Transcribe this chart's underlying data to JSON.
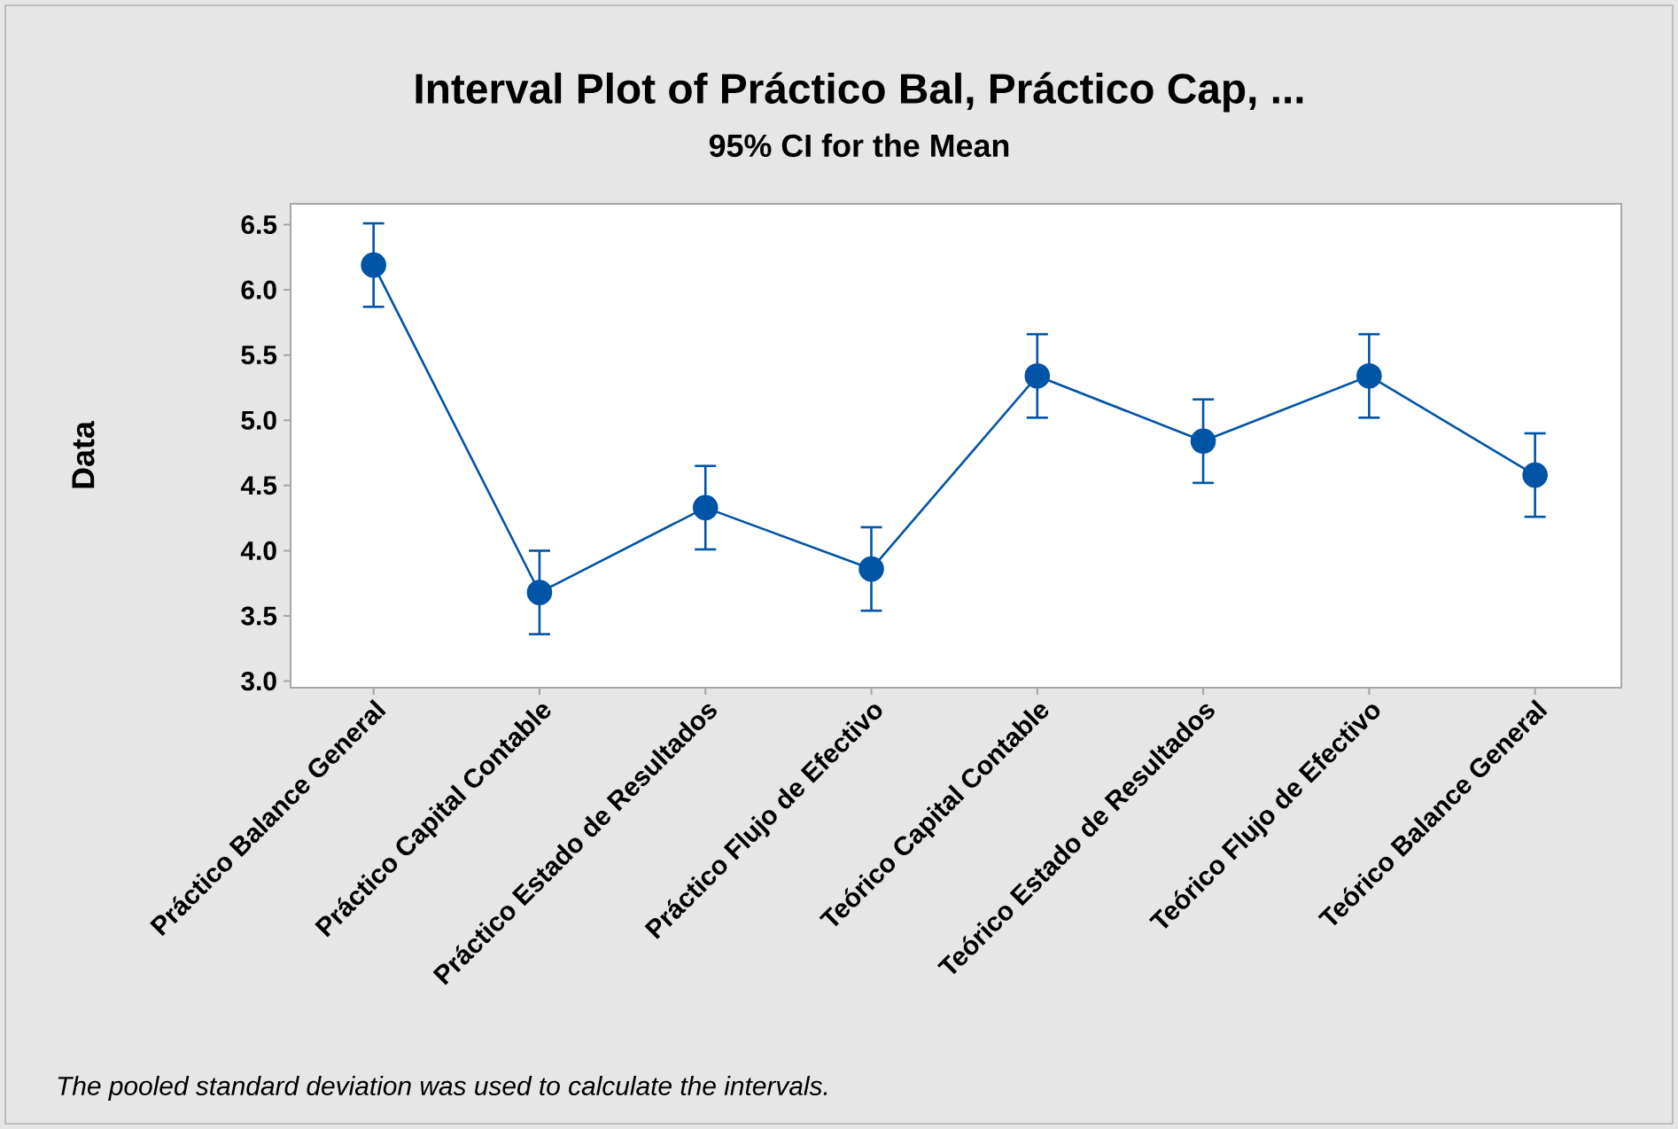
{
  "chart_data": {
    "type": "line",
    "title": "Interval Plot of Práctico Bal, Práctico Cap, ...",
    "subtitle": "95% CI for the Mean",
    "ylabel": "Data",
    "categories": [
      "Práctico Balance General",
      "Práctico Capital Contable",
      "Práctico Estado de Resultados",
      "Práctico Flujo de Efectivo",
      "Teórico Capital Contable",
      "Teórico Estado de Resultados",
      "Teórico Flujo de Efectivo",
      "Teórico Balance General"
    ],
    "values": [
      6.19,
      3.68,
      4.33,
      3.86,
      5.34,
      4.84,
      5.34,
      4.58
    ],
    "errors": [
      0.32,
      0.32,
      0.32,
      0.32,
      0.32,
      0.32,
      0.32,
      0.32
    ],
    "color": "#0054a6",
    "marker": "circle",
    "line_style": "solid",
    "ylim": [
      2.95,
      6.66
    ],
    "yticks": [
      {
        "value": 3.0,
        "label": "3.0"
      },
      {
        "value": 3.5,
        "label": "3.5"
      },
      {
        "value": 4.0,
        "label": "4.0"
      },
      {
        "value": 4.5,
        "label": "4.5"
      },
      {
        "value": 5.0,
        "label": "5.0"
      },
      {
        "value": 5.5,
        "label": "5.5"
      },
      {
        "value": 6.0,
        "label": "6.0"
      },
      {
        "value": 6.5,
        "label": "6.5"
      }
    ],
    "annotations": [
      "The pooled standard deviation was used to calculate the intervals."
    ]
  }
}
